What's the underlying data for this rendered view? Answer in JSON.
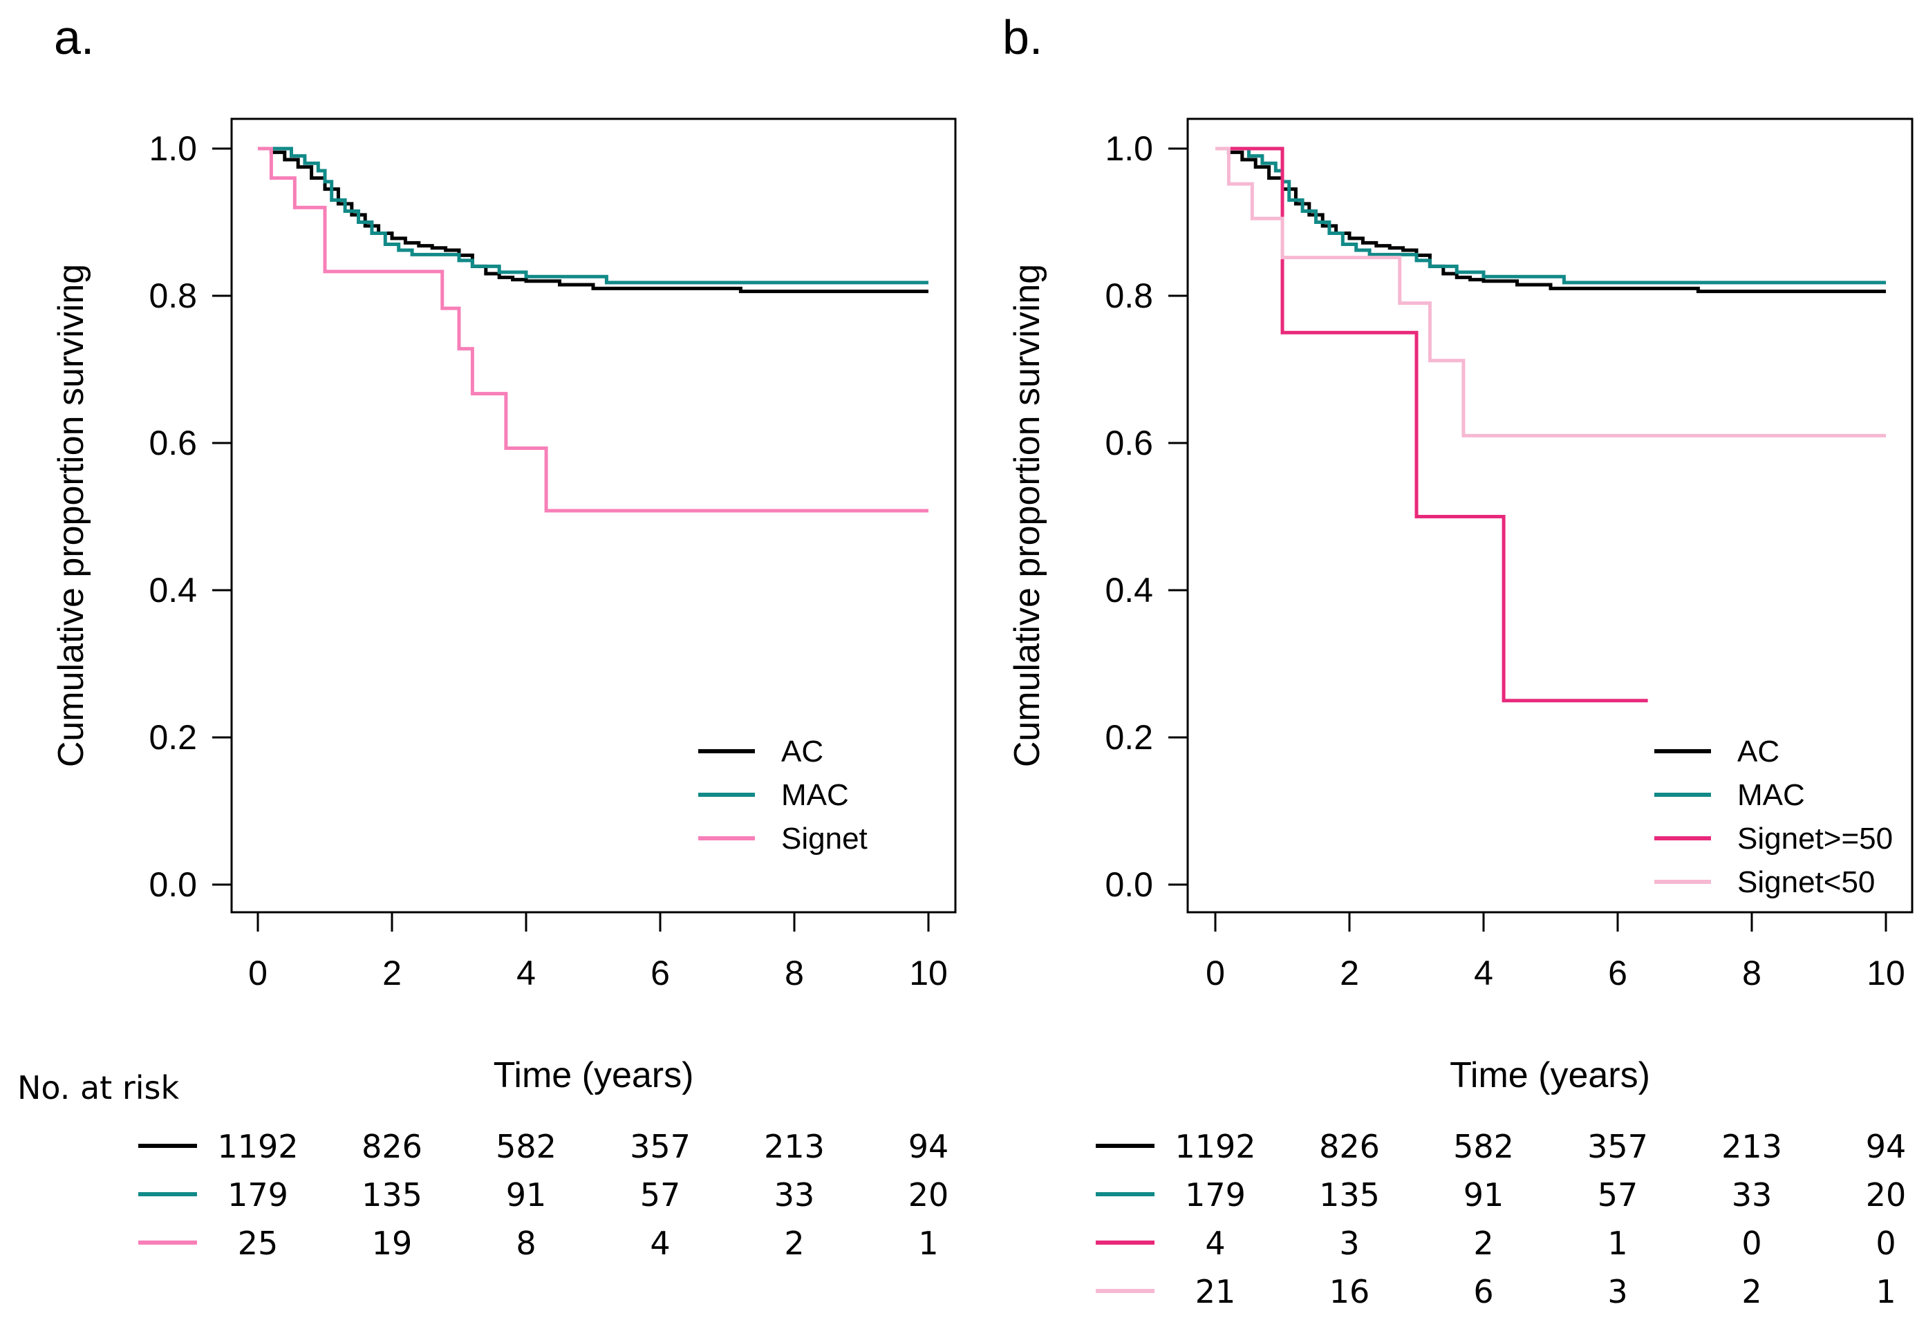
{
  "chart_data": [
    {
      "type": "line",
      "panel_label": "a.",
      "xlabel": "Time (years)",
      "ylabel": "Cumulative proportion surviving",
      "xlim": [
        0,
        10
      ],
      "ylim": [
        0,
        1
      ],
      "xticks": [
        "0",
        "2",
        "4",
        "6",
        "8",
        "10"
      ],
      "yticks": [
        "0.0",
        "0.2",
        "0.4",
        "0.6",
        "0.8",
        "1.0"
      ],
      "legend_position": "bottom-right",
      "series": [
        {
          "name": "AC",
          "color": "#000000",
          "x": [
            0,
            0.2,
            0.4,
            0.6,
            0.8,
            1.0,
            1.2,
            1.4,
            1.6,
            1.8,
            2.0,
            2.2,
            2.4,
            2.6,
            2.8,
            3.0,
            3.2,
            3.4,
            3.6,
            3.8,
            4.0,
            4.5,
            5.0,
            5.5,
            6.0,
            7.2,
            10.0
          ],
          "y": [
            1.0,
            0.995,
            0.985,
            0.975,
            0.96,
            0.945,
            0.925,
            0.91,
            0.895,
            0.885,
            0.878,
            0.872,
            0.868,
            0.865,
            0.862,
            0.855,
            0.84,
            0.83,
            0.825,
            0.822,
            0.82,
            0.815,
            0.81,
            0.81,
            0.81,
            0.806,
            0.806
          ]
        },
        {
          "name": "MAC",
          "color": "#118a88",
          "x": [
            0,
            0.3,
            0.5,
            0.7,
            0.9,
            1.0,
            1.1,
            1.3,
            1.5,
            1.7,
            1.9,
            2.1,
            2.3,
            2.6,
            3.0,
            3.2,
            3.6,
            4.0,
            5.2,
            10.0
          ],
          "y": [
            1.0,
            1.0,
            0.99,
            0.98,
            0.97,
            0.955,
            0.93,
            0.915,
            0.9,
            0.885,
            0.87,
            0.862,
            0.856,
            0.856,
            0.848,
            0.84,
            0.832,
            0.826,
            0.818,
            0.818
          ]
        },
        {
          "name": "Signet",
          "color": "#f77fb8",
          "x": [
            0,
            0.2,
            0.55,
            1.0,
            2.75,
            3.0,
            3.2,
            3.7,
            4.3,
            10.0
          ],
          "y": [
            1.0,
            0.96,
            0.92,
            0.833,
            0.783,
            0.728,
            0.667,
            0.593,
            0.508,
            0.508
          ]
        }
      ],
      "at_risk": {
        "title": "No. at risk",
        "rows": [
          {
            "color": "#000000",
            "values": [
              "1192",
              "826",
              "582",
              "357",
              "213",
              "94"
            ]
          },
          {
            "color": "#118a88",
            "values": [
              "179",
              "135",
              "91",
              "57",
              "33",
              "20"
            ]
          },
          {
            "color": "#f77fb8",
            "values": [
              "25",
              "19",
              "8",
              "4",
              "2",
              "1"
            ]
          }
        ]
      }
    },
    {
      "type": "line",
      "panel_label": "b.",
      "xlabel": "Time (years)",
      "ylabel": "Cumulative proportion surviving",
      "xlim": [
        0,
        10
      ],
      "ylim": [
        0,
        1
      ],
      "xticks": [
        "0",
        "2",
        "4",
        "6",
        "8",
        "10"
      ],
      "yticks": [
        "0.0",
        "0.2",
        "0.4",
        "0.6",
        "0.8",
        "1.0"
      ],
      "legend_position": "bottom-right",
      "series": [
        {
          "name": "AC",
          "color": "#000000",
          "x": [
            0,
            0.2,
            0.4,
            0.6,
            0.8,
            1.0,
            1.2,
            1.4,
            1.6,
            1.8,
            2.0,
            2.2,
            2.4,
            2.6,
            2.8,
            3.0,
            3.2,
            3.4,
            3.6,
            3.8,
            4.0,
            4.5,
            5.0,
            5.5,
            6.0,
            7.2,
            10.0
          ],
          "y": [
            1.0,
            0.995,
            0.985,
            0.975,
            0.96,
            0.945,
            0.925,
            0.91,
            0.895,
            0.885,
            0.878,
            0.872,
            0.868,
            0.865,
            0.862,
            0.855,
            0.84,
            0.83,
            0.825,
            0.822,
            0.82,
            0.815,
            0.81,
            0.81,
            0.81,
            0.806,
            0.806
          ]
        },
        {
          "name": "MAC",
          "color": "#118a88",
          "x": [
            0,
            0.3,
            0.5,
            0.7,
            0.9,
            1.0,
            1.1,
            1.3,
            1.5,
            1.7,
            1.9,
            2.1,
            2.3,
            2.6,
            3.0,
            3.2,
            3.6,
            4.0,
            5.2,
            10.0
          ],
          "y": [
            1.0,
            1.0,
            0.99,
            0.98,
            0.97,
            0.955,
            0.93,
            0.915,
            0.9,
            0.885,
            0.87,
            0.862,
            0.856,
            0.856,
            0.848,
            0.84,
            0.832,
            0.826,
            0.818,
            0.818
          ]
        },
        {
          "name": "Signet>=50",
          "color": "#e8297a",
          "x": [
            0,
            1.0,
            3.0,
            4.3,
            6.45
          ],
          "y": [
            1.0,
            0.75,
            0.5,
            0.25,
            0.25
          ]
        },
        {
          "name": "Signet<50",
          "color": "#f6b8d2",
          "x": [
            0,
            0.2,
            0.55,
            1.0,
            2.75,
            3.2,
            3.7,
            10.0
          ],
          "y": [
            1.0,
            0.952,
            0.905,
            0.852,
            0.79,
            0.712,
            0.61,
            0.61
          ]
        }
      ],
      "at_risk": {
        "title": "",
        "rows": [
          {
            "color": "#000000",
            "values": [
              "1192",
              "826",
              "582",
              "357",
              "213",
              "94"
            ]
          },
          {
            "color": "#118a88",
            "values": [
              "179",
              "135",
              "91",
              "57",
              "33",
              "20"
            ]
          },
          {
            "color": "#e8297a",
            "values": [
              "4",
              "3",
              "2",
              "1",
              "0",
              "0"
            ]
          },
          {
            "color": "#f6b8d2",
            "values": [
              "21",
              "16",
              "6",
              "3",
              "2",
              "1"
            ]
          }
        ]
      }
    }
  ]
}
